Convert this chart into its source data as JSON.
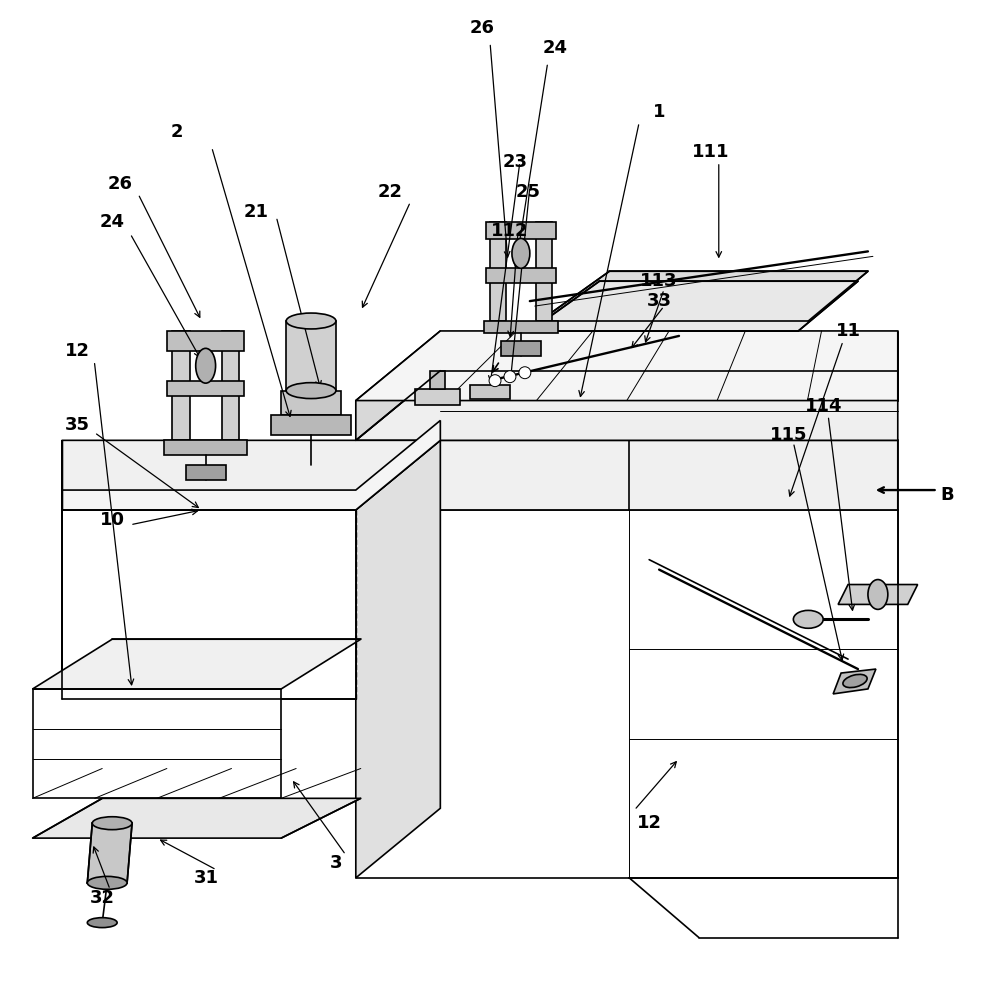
{
  "bg_color": "#ffffff",
  "lc": "#000000",
  "lw": 1.2,
  "tlw": 0.7,
  "fs": 13,
  "fig_w": 10,
  "fig_h": 10
}
